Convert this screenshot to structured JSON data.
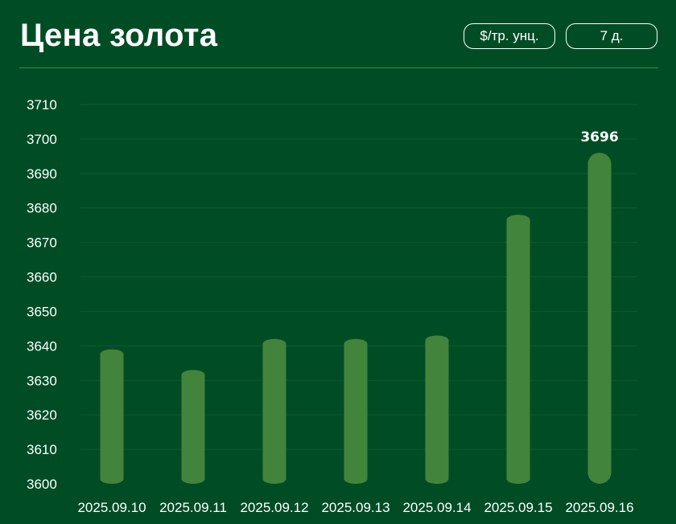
{
  "header": {
    "title": "Цена золота",
    "unit_label": "$/тр. унц.",
    "range_label": "7 д."
  },
  "colors": {
    "background": "#004d25",
    "bar": "#43843c",
    "gridline": "#0d5a2e",
    "divider": "#3a8a4a"
  },
  "chart_data": {
    "type": "bar",
    "title": "",
    "xlabel": "",
    "ylabel": "",
    "categories": [
      "2025.09.10",
      "2025.09.11",
      "2025.09.12",
      "2025.09.13",
      "2025.09.14",
      "2025.09.15",
      "2025.09.16"
    ],
    "series": [
      {
        "values": [
          3639,
          3633,
          3642,
          3642,
          3643,
          3678,
          3696
        ]
      }
    ],
    "data_labels": [
      {
        "category": "2025.09.16",
        "text": "3696"
      }
    ],
    "yticks": [
      3600,
      3610,
      3620,
      3630,
      3640,
      3650,
      3660,
      3670,
      3680,
      3690,
      3700,
      3710
    ],
    "ylim": [
      3600,
      3710
    ],
    "grid": true,
    "legend": "none"
  }
}
